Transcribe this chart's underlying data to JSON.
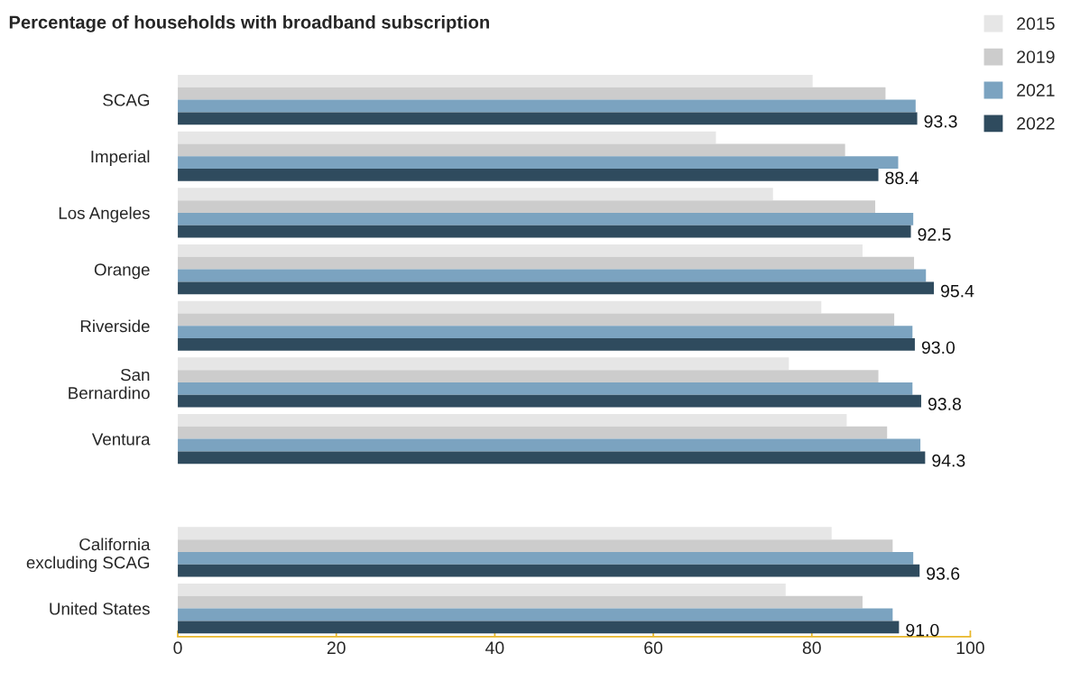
{
  "chart_data": {
    "type": "bar",
    "orientation": "horizontal",
    "title": "Percentage of households with broadband subscription",
    "categories": [
      "SCAG",
      "Imperial",
      "Los Angeles",
      "Orange",
      "Riverside",
      "San\nBernardino",
      "Ventura",
      null,
      "California\nexcluding SCAG",
      "United States"
    ],
    "series": [
      {
        "name": "2015",
        "color": "#e6e6e6",
        "values": [
          80.1,
          67.9,
          75.1,
          86.4,
          81.2,
          77.1,
          84.4,
          null,
          82.5,
          76.7
        ]
      },
      {
        "name": "2019",
        "color": "#cccccc",
        "values": [
          89.3,
          84.2,
          88.0,
          92.9,
          90.4,
          88.4,
          89.5,
          null,
          90.2,
          86.4
        ]
      },
      {
        "name": "2021",
        "color": "#7ba3c0",
        "values": [
          93.1,
          90.9,
          92.8,
          94.4,
          92.7,
          92.7,
          93.7,
          null,
          92.8,
          90.2
        ]
      },
      {
        "name": "2022",
        "color": "#2f4b5e",
        "values": [
          93.3,
          88.4,
          92.5,
          95.4,
          93.0,
          93.8,
          94.3,
          null,
          93.6,
          91.0
        ],
        "value_labels": [
          "93.3",
          "88.4",
          "92.5",
          "95.4",
          "93.0",
          "93.8",
          "94.3",
          null,
          "93.6",
          "91.0"
        ]
      }
    ],
    "xlim": [
      0,
      100
    ],
    "xticks": [
      0,
      20,
      40,
      60,
      80,
      100
    ],
    "grid": false,
    "legend": "top right"
  }
}
